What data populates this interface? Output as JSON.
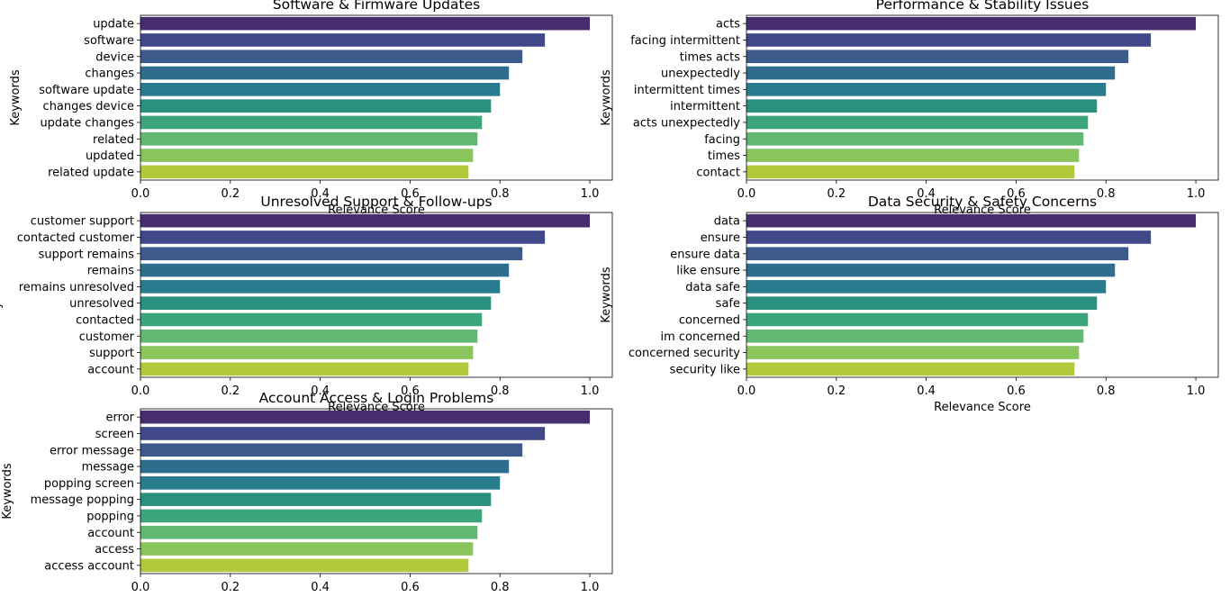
{
  "chart_data": [
    {
      "type": "bar",
      "orientation": "horizontal",
      "title": "Software & Firmware Updates",
      "xlabel": "Relevance Score",
      "ylabel": "Keywords",
      "xlim": [
        0,
        1.05
      ],
      "xticks": [
        "0.0",
        "0.2",
        "0.4",
        "0.6",
        "0.8",
        "1.0"
      ],
      "categories": [
        "update",
        "software",
        "device",
        "changes",
        "software update",
        "changes device",
        "update changes",
        "related",
        "updated",
        "related update"
      ],
      "values": [
        1.0,
        0.9,
        0.85,
        0.82,
        0.8,
        0.78,
        0.76,
        0.75,
        0.74,
        0.73
      ]
    },
    {
      "type": "bar",
      "orientation": "horizontal",
      "title": "Performance & Stability Issues",
      "xlabel": "Relevance Score",
      "ylabel": "Keywords",
      "xlim": [
        0,
        1.05
      ],
      "xticks": [
        "0.0",
        "0.2",
        "0.4",
        "0.6",
        "0.8",
        "1.0"
      ],
      "categories": [
        "acts",
        "facing intermittent",
        "times acts",
        "unexpectedly",
        "intermittent times",
        "intermittent",
        "acts unexpectedly",
        "facing",
        "times",
        "contact"
      ],
      "values": [
        1.0,
        0.9,
        0.85,
        0.82,
        0.8,
        0.78,
        0.76,
        0.75,
        0.74,
        0.73
      ]
    },
    {
      "type": "bar",
      "orientation": "horizontal",
      "title": "Unresolved Support & Follow-ups",
      "xlabel": "Relevance Score",
      "ylabel": "Keywords",
      "xlim": [
        0,
        1.05
      ],
      "xticks": [
        "0.0",
        "0.2",
        "0.4",
        "0.6",
        "0.8",
        "1.0"
      ],
      "categories": [
        "customer support",
        "contacted customer",
        "support remains",
        "remains",
        "remains unresolved",
        "unresolved",
        "contacted",
        "customer",
        "support",
        "account"
      ],
      "values": [
        1.0,
        0.9,
        0.85,
        0.82,
        0.8,
        0.78,
        0.76,
        0.75,
        0.74,
        0.73
      ]
    },
    {
      "type": "bar",
      "orientation": "horizontal",
      "title": "Data Security & Safety Concerns",
      "xlabel": "Relevance Score",
      "ylabel": "Keywords",
      "xlim": [
        0,
        1.05
      ],
      "xticks": [
        "0.0",
        "0.2",
        "0.4",
        "0.6",
        "0.8",
        "1.0"
      ],
      "categories": [
        "data",
        "ensure",
        "ensure data",
        "like ensure",
        "data safe",
        "safe",
        "concerned",
        "im concerned",
        "concerned security",
        "security like"
      ],
      "values": [
        1.0,
        0.9,
        0.85,
        0.82,
        0.8,
        0.78,
        0.76,
        0.75,
        0.74,
        0.73
      ]
    },
    {
      "type": "bar",
      "orientation": "horizontal",
      "title": "Account Access & Login Problems",
      "xlabel": "",
      "ylabel": "Keywords",
      "xlim": [
        0,
        1.05
      ],
      "xticks": [
        "0.0",
        "0.2",
        "0.4",
        "0.6",
        "0.8",
        "1.0"
      ],
      "categories": [
        "error",
        "screen",
        "error message",
        "message",
        "popping screen",
        "message popping",
        "popping",
        "account",
        "access",
        "access account"
      ],
      "values": [
        1.0,
        0.9,
        0.85,
        0.82,
        0.8,
        0.78,
        0.76,
        0.75,
        0.74,
        0.73
      ]
    }
  ],
  "palette": [
    "#472c6e",
    "#41488a",
    "#3c5a8b",
    "#2f6d8e",
    "#297b8e",
    "#2a9181",
    "#3da57c",
    "#62b872",
    "#88c55c",
    "#b2c93b"
  ]
}
